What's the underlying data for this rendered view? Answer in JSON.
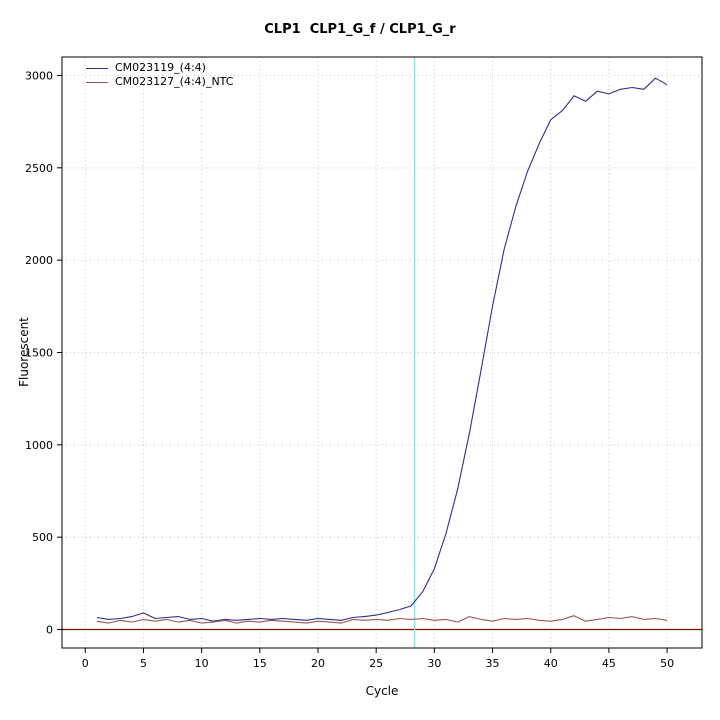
{
  "figure": {
    "title": "CLP1  CLP1_G_f / CLP1_G_r"
  },
  "chart_data": {
    "type": "line",
    "title": "CLP1  CLP1_G_f / CLP1_G_r",
    "xlabel": "Cycle",
    "ylabel": "Fluorescent",
    "xlim": [
      -2,
      53
    ],
    "ylim": [
      -100,
      3100
    ],
    "xticks": [
      0,
      5,
      10,
      15,
      20,
      25,
      30,
      35,
      40,
      45,
      50
    ],
    "yticks": [
      0,
      500,
      1000,
      1500,
      2000,
      2500,
      3000
    ],
    "grid": "dotted",
    "grid_color": "#c9c9c9",
    "axis_color": "#000000",
    "legend_position": "top-left",
    "threshold_vline": {
      "x": 28.3,
      "color": "#7de6ef"
    },
    "threshold_hline": {
      "y": 0,
      "color": "#8b0000"
    },
    "x": [
      1,
      2,
      3,
      4,
      5,
      6,
      7,
      8,
      9,
      10,
      11,
      12,
      13,
      14,
      15,
      16,
      17,
      18,
      19,
      20,
      21,
      22,
      23,
      24,
      25,
      26,
      27,
      28,
      29,
      30,
      31,
      32,
      33,
      34,
      35,
      36,
      37,
      38,
      39,
      40,
      41,
      42,
      43,
      44,
      45,
      46,
      47,
      48,
      49,
      50
    ],
    "series": [
      {
        "name": "CM023119_(4:4)",
        "color": "#2e2e8f",
        "values": [
          65,
          55,
          60,
          70,
          90,
          60,
          65,
          70,
          55,
          60,
          45,
          55,
          50,
          55,
          60,
          55,
          60,
          55,
          50,
          60,
          55,
          50,
          65,
          70,
          78,
          92,
          108,
          128,
          205,
          330,
          520,
          760,
          1060,
          1400,
          1750,
          2060,
          2290,
          2480,
          2630,
          2760,
          2810,
          2890,
          2860,
          2915,
          2900,
          2925,
          2935,
          2925,
          2985,
          2950
        ]
      },
      {
        "name": "CM023127_(4:4)_NTC",
        "color": "#a05252",
        "values": [
          45,
          35,
          50,
          40,
          55,
          45,
          55,
          40,
          50,
          35,
          40,
          50,
          35,
          45,
          40,
          50,
          45,
          40,
          35,
          45,
          40,
          35,
          55,
          50,
          55,
          50,
          60,
          55,
          60,
          50,
          55,
          40,
          70,
          55,
          45,
          60,
          55,
          60,
          50,
          45,
          55,
          75,
          45,
          55,
          65,
          60,
          70,
          55,
          60,
          50
        ]
      }
    ]
  }
}
